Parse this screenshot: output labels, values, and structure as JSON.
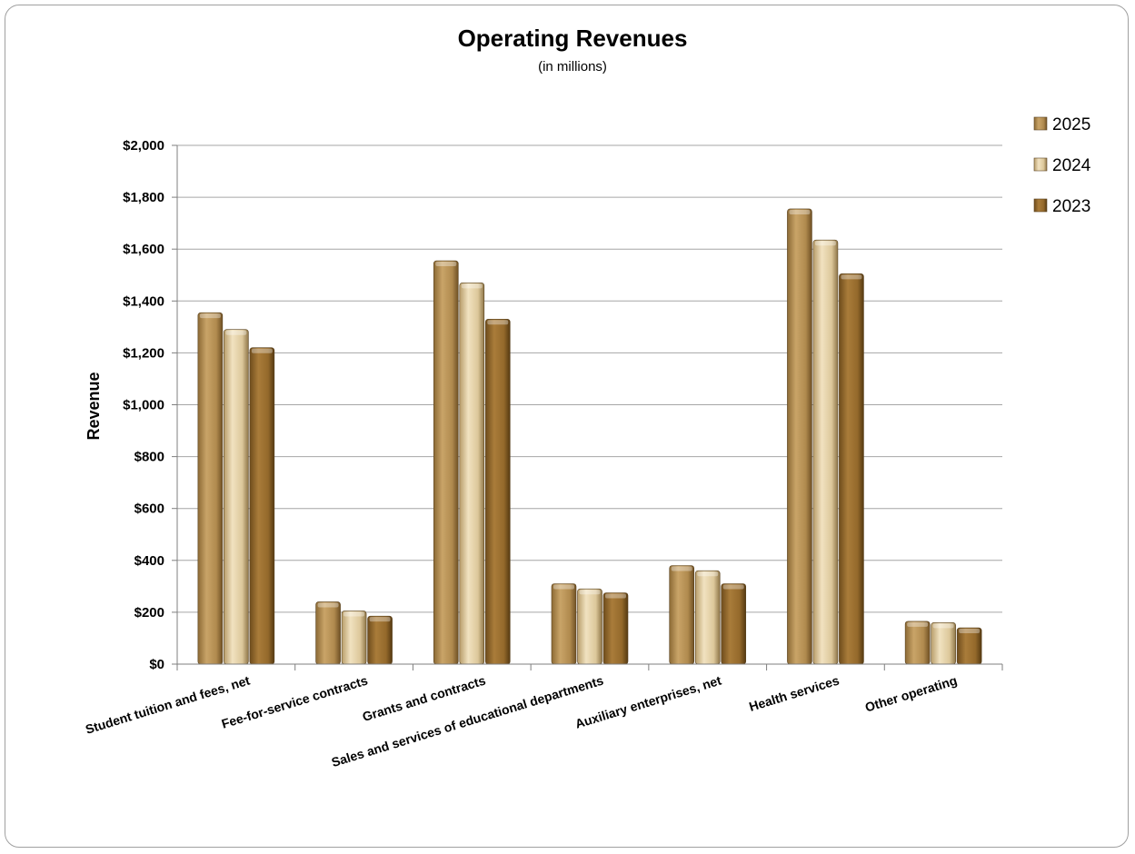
{
  "chart_data": {
    "type": "bar",
    "title": "Operating Revenues",
    "subtitle": "(in millions)",
    "xlabel": "",
    "ylabel": "Revenue",
    "ylim": [
      0,
      2000
    ],
    "yticks": [
      0,
      200,
      400,
      600,
      800,
      1000,
      1200,
      1400,
      1600,
      1800,
      2000
    ],
    "ytick_labels": [
      "$0",
      "$200",
      "$400",
      "$600",
      "$800",
      "$1,000",
      "$1,200",
      "$1,400",
      "$1,600",
      "$1,800",
      "$2,000"
    ],
    "grid": true,
    "legend_position": "right",
    "categories": [
      "Student tuition and fees, net",
      "Fee-for-service contracts",
      "Grants and contracts",
      "Sales and services of educational departments",
      "Auxiliary enterprises, net",
      "Health services",
      "Other operating"
    ],
    "series": [
      {
        "name": "2025",
        "color": "#b08a4e",
        "values": [
          1355,
          240,
          1555,
          310,
          380,
          1755,
          165
        ]
      },
      {
        "name": "2024",
        "color": "#dcc79a",
        "values": [
          1290,
          205,
          1470,
          290,
          360,
          1635,
          160
        ]
      },
      {
        "name": "2023",
        "color": "#94692b",
        "values": [
          1220,
          185,
          1330,
          275,
          310,
          1505,
          140
        ]
      }
    ]
  }
}
